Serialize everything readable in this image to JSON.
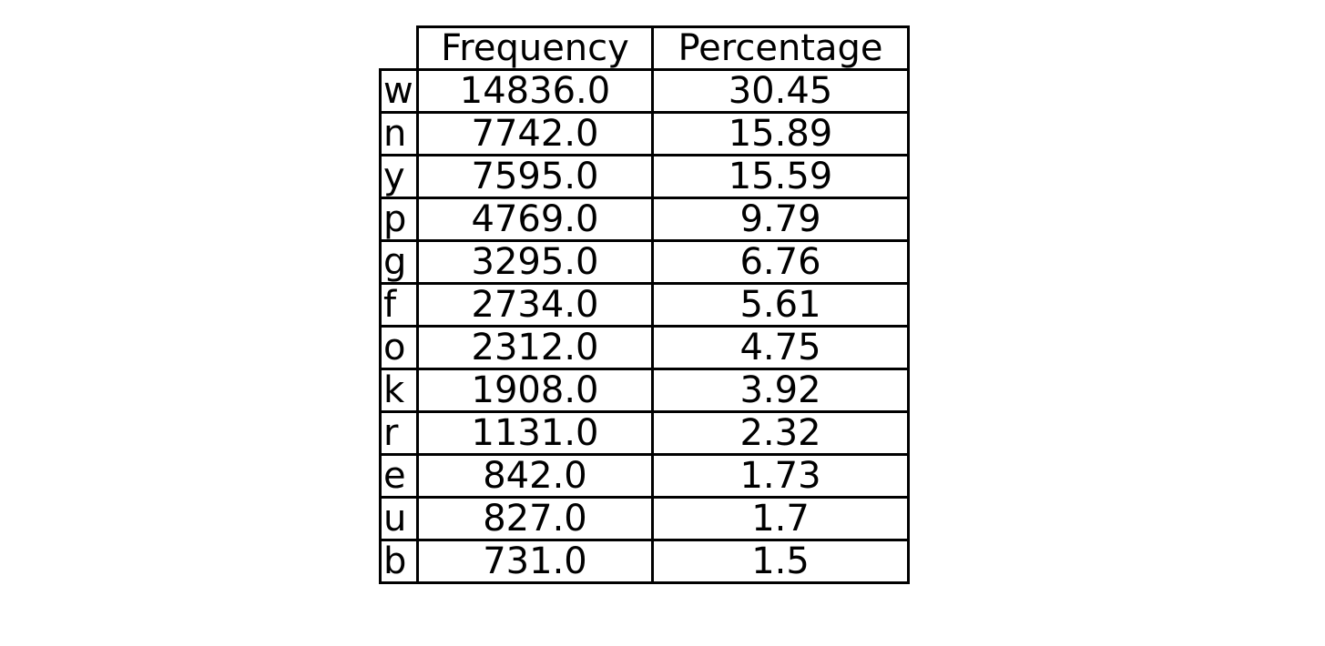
{
  "chart_data": {
    "type": "table",
    "columns": [
      "Frequency",
      "Percentage"
    ],
    "rows": [
      {
        "label": "w",
        "frequency": "14836.0",
        "percentage": "30.45"
      },
      {
        "label": "n",
        "frequency": "7742.0",
        "percentage": "15.89"
      },
      {
        "label": "y",
        "frequency": "7595.0",
        "percentage": "15.59"
      },
      {
        "label": "p",
        "frequency": "4769.0",
        "percentage": "9.79"
      },
      {
        "label": "g",
        "frequency": "3295.0",
        "percentage": "6.76"
      },
      {
        "label": "f",
        "frequency": "2734.0",
        "percentage": "5.61"
      },
      {
        "label": "o",
        "frequency": "2312.0",
        "percentage": "4.75"
      },
      {
        "label": "k",
        "frequency": "1908.0",
        "percentage": "3.92"
      },
      {
        "label": "r",
        "frequency": "1131.0",
        "percentage": "2.32"
      },
      {
        "label": "e",
        "frequency": "842.0",
        "percentage": "1.73"
      },
      {
        "label": "u",
        "frequency": "827.0",
        "percentage": "1.7"
      },
      {
        "label": "b",
        "frequency": "731.0",
        "percentage": "1.5"
      }
    ]
  }
}
